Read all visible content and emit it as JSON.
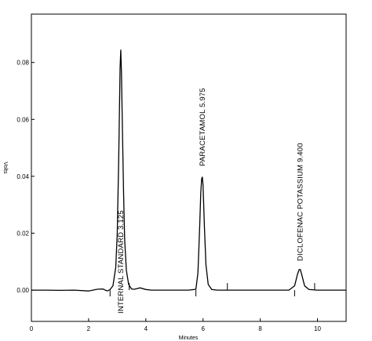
{
  "chart_data": {
    "type": "line",
    "xlabel": "Minutes",
    "ylabel": "Volts",
    "xlim": [
      0,
      11
    ],
    "ylim": [
      -0.011,
      0.097
    ],
    "x_ticks": [
      "0",
      "2",
      "4",
      "6",
      "8",
      "10"
    ],
    "x_tick_values": [
      0,
      2,
      4,
      6,
      8,
      10
    ],
    "y_ticks": [
      "0.00",
      "0.02",
      "0.04",
      "0.06",
      "0.08"
    ],
    "y_tick_values": [
      0.0,
      0.02,
      0.04,
      0.06,
      0.08
    ],
    "series": [
      {
        "x": [
          0.0,
          0.5,
          1.0,
          1.5,
          2.0,
          2.3,
          2.5,
          2.65,
          2.75,
          2.85,
          2.95,
          3.0,
          3.05,
          3.08,
          3.1,
          3.125,
          3.15,
          3.18,
          3.22,
          3.26,
          3.32,
          3.4,
          3.5,
          3.6,
          3.8,
          4.0,
          4.2,
          4.5,
          5.0,
          5.5,
          5.75,
          5.82,
          5.88,
          5.92,
          5.95,
          5.975,
          6.0,
          6.05,
          6.1,
          6.18,
          6.3,
          6.5,
          7.0,
          7.5,
          8.0,
          8.5,
          9.0,
          9.2,
          9.3,
          9.36,
          9.4,
          9.46,
          9.55,
          9.7,
          10.0,
          10.5,
          11.0
        ],
        "y": [
          0.0,
          0.0,
          -0.0001,
          0.0,
          -0.0003,
          0.0003,
          0.0004,
          -0.0003,
          0.0002,
          0.0015,
          0.008,
          0.02,
          0.045,
          0.065,
          0.078,
          0.0845,
          0.076,
          0.058,
          0.035,
          0.018,
          0.007,
          0.002,
          0.0004,
          0.0003,
          0.0008,
          0.0002,
          0.0,
          0.0,
          0.0,
          0.0,
          0.0003,
          0.006,
          0.022,
          0.034,
          0.039,
          0.0398,
          0.037,
          0.022,
          0.009,
          0.002,
          0.0002,
          0.0,
          0.0,
          0.0,
          0.0,
          0.0,
          0.0,
          0.0015,
          0.0055,
          0.0072,
          0.0072,
          0.005,
          0.0015,
          0.0002,
          0.0,
          0.0,
          0.0
        ]
      }
    ],
    "peaks": [
      {
        "label": "INTERNAL STANDARD  3.125",
        "x": 3.125,
        "y": 0.0845
      },
      {
        "label": "PARACETAMOL  5.975",
        "x": 5.975,
        "y": 0.0398
      },
      {
        "label": "DICLOFENAC POTASSIUM  9.400",
        "x": 9.4,
        "y": 0.0072
      }
    ],
    "integration_ticks": [
      2.75,
      3.42,
      5.75,
      6.85,
      9.2,
      9.9
    ],
    "grid": false
  }
}
